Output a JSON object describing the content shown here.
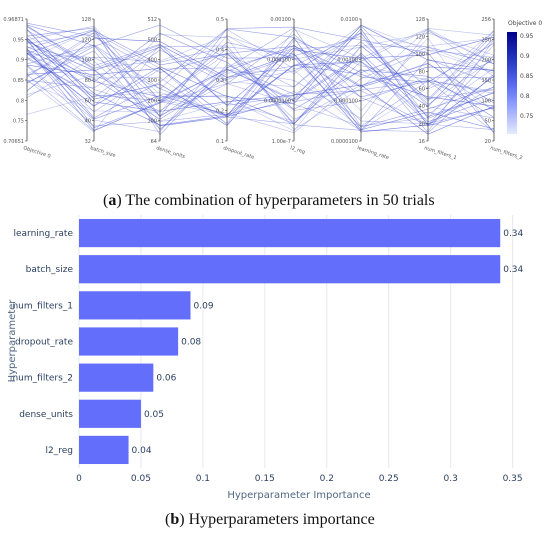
{
  "captions": {
    "a_letter": "a",
    "a_text": " The combination of hyperparameters in 50 trials",
    "b_letter": "b",
    "b_text": " Hyperparameters importance"
  },
  "colorbar": {
    "title": "Objective 0",
    "ticks": [
      "0.95",
      "0.9",
      "0.85",
      "0.8",
      "0.75"
    ],
    "colors": [
      "#e6ebff",
      "#9aa8ff",
      "#5566ee",
      "#2233bb",
      "#00008b"
    ]
  },
  "chart_data": [
    {
      "type": "parallel_coordinates",
      "dimensions": [
        {
          "name": "Objective 0",
          "ticks": [
            "0.96871",
            "0.95",
            "0.9",
            "0.85",
            "0.8",
            "0.75",
            "0.70651"
          ]
        },
        {
          "name": "batch_size",
          "ticks": [
            "128",
            "120",
            "100",
            "80",
            "60",
            "40",
            "32"
          ]
        },
        {
          "name": "dense_units",
          "ticks": [
            "512",
            "500",
            "400",
            "300",
            "200",
            "100",
            "64"
          ]
        },
        {
          "name": "dropout_rate",
          "ticks": [
            "0.5",
            "0.4",
            "0.3",
            "0.2",
            "0.1"
          ]
        },
        {
          "name": "l2_reg",
          "ticks": [
            "0.00100",
            "0.000100",
            "0.0000100",
            "1.00e-7"
          ]
        },
        {
          "name": "learning_rate",
          "ticks": [
            "0.0100",
            "0.00100",
            "0.000100",
            "0.0000100"
          ]
        },
        {
          "name": "num_filters_1",
          "ticks": [
            "128",
            "120",
            "100",
            "80",
            "60",
            "40",
            "20",
            "16"
          ]
        },
        {
          "name": "num_filters_2",
          "ticks": [
            "256",
            "250",
            "200",
            "150",
            "100",
            "50",
            "20"
          ]
        }
      ],
      "n_trials": 50,
      "line_color": "#4d5bd6"
    },
    {
      "type": "bar",
      "orientation": "horizontal",
      "categories": [
        "learning_rate",
        "batch_size",
        "num_filters_1",
        "dropout_rate",
        "num_filters_2",
        "dense_units",
        "l2_reg"
      ],
      "values": [
        0.34,
        0.34,
        0.09,
        0.08,
        0.06,
        0.05,
        0.04
      ],
      "value_labels": [
        "0.34",
        "0.34",
        "0.09",
        "0.08",
        "0.06",
        "0.05",
        "0.04"
      ],
      "bar_color": "#636efa",
      "xlabel": "Hyperparameter Importance",
      "ylabel": "Hyperparameter",
      "xlim": [
        0,
        0.36
      ],
      "xticks": [
        0,
        0.05,
        0.1,
        0.15,
        0.2,
        0.25,
        0.3,
        0.35
      ],
      "xtick_labels": [
        "0",
        "0.05",
        "0.1",
        "0.15",
        "0.2",
        "0.25",
        "0.3",
        "0.35"
      ],
      "grid": true
    }
  ]
}
